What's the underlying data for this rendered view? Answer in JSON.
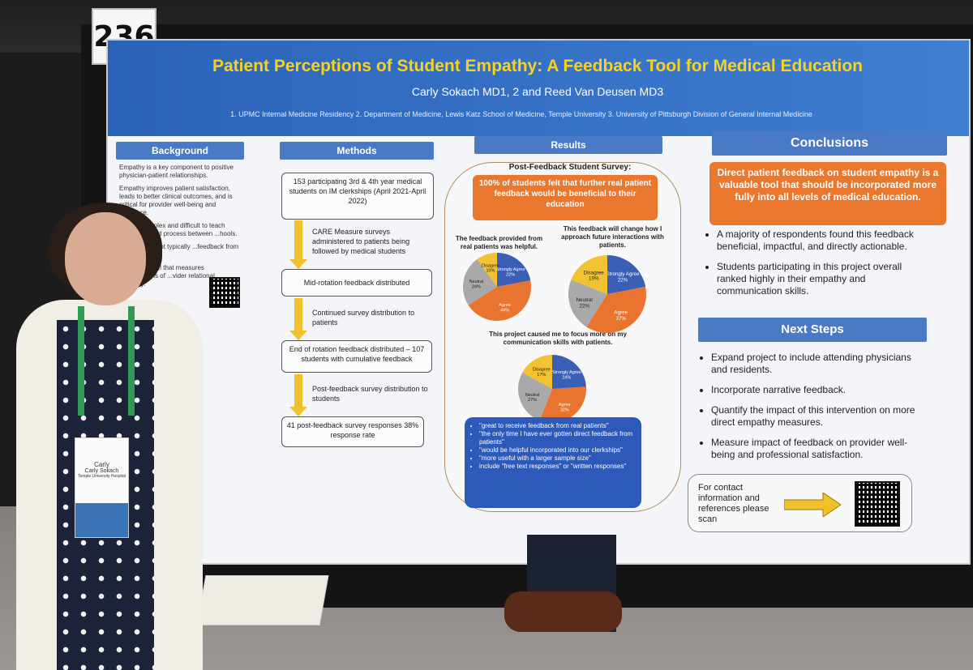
{
  "booth_number": "236",
  "poster": {
    "title": "Patient Perceptions of Student Empathy: A Feedback Tool for Medical Education",
    "authors": "Carly Sokach MD1, 2 and Reed Van Deusen MD3",
    "affiliations": "1. UPMC Internal Medicine Residency 2. Department of Medicine, Lewis Katz School of Medicine, Temple University 3. University of Pittsburgh Division of General Internal Medicine",
    "sections": {
      "background": "Background",
      "methods": "Methods",
      "results": "Results",
      "conclusions": "Conclusions",
      "next_steps": "Next Steps"
    },
    "background_text": [
      "Empathy is a key component to positive physician-patient relationships.",
      "Empathy improves patient satisfaction, leads to better clinical outcomes, and is critical for provider well-being and resilience.",
      "...thy is complex and difficult to teach ...standardized process between ...hools.",
      "...ation does not typically ...feedback from patients.",
      "...asure is a ...l that measures ...perceptions of ...vider relational empathy."
    ],
    "methods": {
      "box1": "153 participating 3rd & 4th year medical students on IM clerkships (April 2021-April 2022)",
      "note1": "CARE Measure surveys administered to patients being followed by medical students",
      "box2": "Mid-rotation feedback distributed",
      "note2": "Continued survey distribution to patients",
      "box3": "End of rotation feedback distributed – 107 students with cumulative feedback",
      "note3": "Post-feedback survey distribution to students",
      "box4": "41 post-feedback survey responses 38% response rate"
    },
    "results": {
      "survey_title": "Post-Feedback Student Survey:",
      "highlight": "100% of students felt that further real patient feedback would be beneficial to their education",
      "chart1_caption": "The feedback provided from real patients was helpful.",
      "chart2_caption": "This feedback will change how I approach future interactions with patients.",
      "chart3_caption": "This project caused me to focus more on my communication skills with patients.",
      "quotes": [
        "\"great to receive feedback from real patients\"",
        "\"the only time I have ever gotten direct feedback from patients\"",
        "\"would be helpful incorporated into our clerkships\"",
        "\"more useful with a larger sample size\"",
        "include \"free text responses\" or \"written responses\""
      ]
    },
    "conclusions": {
      "highlight": "Direct patient feedback on student empathy is a valuable tool that should be incorporated more fully into all levels of medical education.",
      "items": [
        "A majority of respondents found this feedback beneficial, impactful, and directly actionable.",
        "Students participating in this project overall ranked highly in their empathy and communication skills."
      ]
    },
    "next_steps": [
      "Expand project to include attending physicians and residents.",
      "Incorporate narrative feedback.",
      "Quantify the impact of this intervention on more direct empathy measures.",
      "Measure impact of feedback on provider well-being and professional satisfaction."
    ],
    "contact": "For contact information and references please scan"
  },
  "badge": {
    "first_name": "Carly",
    "full_name": "Carly Sokach",
    "org": "Temple University Hospital"
  },
  "chart_data": [
    {
      "type": "pie",
      "categories": [
        "Strongly Agree",
        "Agree",
        "Neutral",
        "Disagree"
      ],
      "values": [
        22,
        44,
        24,
        10
      ],
      "colors": [
        "#3a5fb5",
        "#e8742f",
        "#a9a9a9",
        "#f2c230"
      ]
    },
    {
      "type": "pie",
      "categories": [
        "Strongly Agree",
        "Agree",
        "Neutral",
        "Disagree"
      ],
      "values": [
        22,
        37,
        22,
        19
      ],
      "colors": [
        "#3a5fb5",
        "#e8742f",
        "#a9a9a9",
        "#f2c230"
      ]
    },
    {
      "type": "pie",
      "categories": [
        "Strongly Agree",
        "Agree",
        "Neutral",
        "Disagree"
      ],
      "values": [
        24,
        32,
        27,
        17
      ],
      "colors": [
        "#3a5fb5",
        "#e8742f",
        "#a9a9a9",
        "#f2c230"
      ]
    }
  ]
}
